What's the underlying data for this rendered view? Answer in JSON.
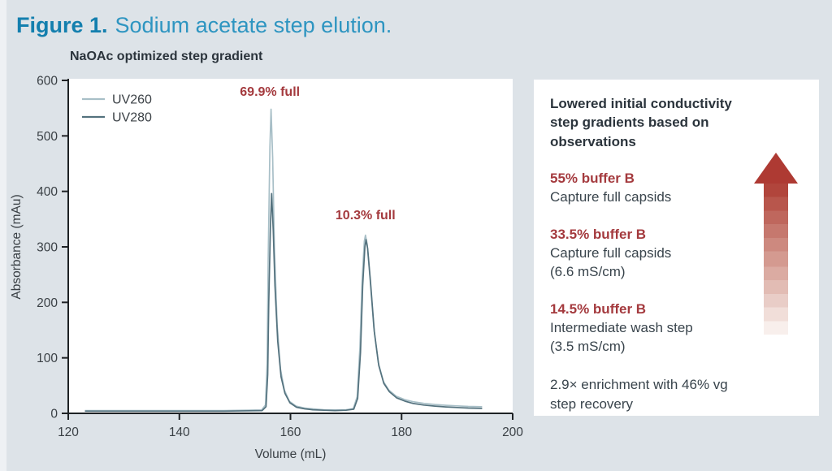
{
  "figure": {
    "label": "Figure 1.",
    "caption": "Sodium acetate step elution."
  },
  "colors": {
    "background": "#dde3e8",
    "figure_label_blue": "#137fae",
    "figure_caption_blue": "#2e95c1",
    "accent_red": "#a43a3e",
    "arrow_red": "#ae3a33",
    "axis_dark": "#1e2225",
    "text_dark": "#39444c",
    "uv260_line": "#a8bfc7",
    "uv280_line": "#54727e"
  },
  "chart_data": {
    "type": "line",
    "title": "NaOAc optimized step gradient",
    "xlabel": "Volume (mL)",
    "ylabel": "Absorbance (mAu)",
    "xlim": [
      120,
      200
    ],
    "ylim": [
      0,
      600
    ],
    "xticks": [
      120,
      140,
      160,
      180,
      200
    ],
    "yticks": [
      0,
      100,
      200,
      300,
      400,
      500,
      600
    ],
    "legend_position": "top-left",
    "grid": false,
    "annotations": [
      {
        "label": "69.9% full",
        "x": 156.3,
        "y": 572
      },
      {
        "label": "10.3% full",
        "x": 173.5,
        "y": 350
      }
    ],
    "series": [
      {
        "name": "UV260",
        "color": "#a8bfc7",
        "points": [
          [
            123,
            5
          ],
          [
            135,
            5
          ],
          [
            148,
            5
          ],
          [
            154.8,
            6
          ],
          [
            155.5,
            15
          ],
          [
            155.8,
            90
          ],
          [
            156.0,
            280
          ],
          [
            156.3,
            480
          ],
          [
            156.5,
            548
          ],
          [
            156.8,
            460
          ],
          [
            157.1,
            300
          ],
          [
            157.6,
            160
          ],
          [
            158.2,
            80
          ],
          [
            158.9,
            42
          ],
          [
            159.8,
            22
          ],
          [
            161,
            13
          ],
          [
            162.5,
            9.5
          ],
          [
            164,
            8
          ],
          [
            166,
            6.5
          ],
          [
            168,
            6
          ],
          [
            170,
            6.5
          ],
          [
            171.3,
            8.5
          ],
          [
            172.0,
            30
          ],
          [
            172.5,
            120
          ],
          [
            172.9,
            240
          ],
          [
            173.3,
            310
          ],
          [
            173.5,
            321
          ],
          [
            173.8,
            305
          ],
          [
            174.3,
            245
          ],
          [
            175,
            155
          ],
          [
            175.8,
            92
          ],
          [
            176.7,
            58
          ],
          [
            177.7,
            42
          ],
          [
            179,
            31
          ],
          [
            180.5,
            25
          ],
          [
            182,
            21
          ],
          [
            184,
            18
          ],
          [
            186,
            16
          ],
          [
            188,
            14.5
          ],
          [
            190,
            13.5
          ],
          [
            192,
            12.5
          ],
          [
            194.5,
            12
          ]
        ]
      },
      {
        "name": "UV280",
        "color": "#54727e",
        "points": [
          [
            123,
            4
          ],
          [
            135,
            4
          ],
          [
            148,
            4
          ],
          [
            154.9,
            5
          ],
          [
            155.6,
            12
          ],
          [
            155.9,
            70
          ],
          [
            156.1,
            200
          ],
          [
            156.4,
            340
          ],
          [
            156.6,
            396
          ],
          [
            156.9,
            330
          ],
          [
            157.2,
            230
          ],
          [
            157.7,
            130
          ],
          [
            158.3,
            66
          ],
          [
            159,
            36
          ],
          [
            159.9,
            19
          ],
          [
            161.1,
            11
          ],
          [
            162.6,
            8
          ],
          [
            164,
            6.5
          ],
          [
            166,
            5.5
          ],
          [
            168,
            5
          ],
          [
            170,
            5.5
          ],
          [
            171.4,
            7.5
          ],
          [
            172.1,
            27
          ],
          [
            172.6,
            110
          ],
          [
            173,
            230
          ],
          [
            173.4,
            300
          ],
          [
            173.6,
            313
          ],
          [
            173.9,
            297
          ],
          [
            174.4,
            237
          ],
          [
            175.1,
            147
          ],
          [
            175.9,
            86
          ],
          [
            176.8,
            54
          ],
          [
            177.8,
            39
          ],
          [
            179.1,
            28
          ],
          [
            180.6,
            22
          ],
          [
            182,
            18
          ],
          [
            184,
            15
          ],
          [
            186,
            13
          ],
          [
            188,
            11.5
          ],
          [
            190,
            10.5
          ],
          [
            192,
            9.5
          ],
          [
            194.5,
            9
          ]
        ]
      }
    ]
  },
  "panel": {
    "heading": [
      "Lowered initial conductivity",
      "step gradients based on observations"
    ],
    "steps": [
      {
        "label": "55% buffer B",
        "lines": [
          "Capture full capsids"
        ]
      },
      {
        "label": "33.5% buffer B",
        "lines": [
          "Capture full capsids",
          "(6.6 mS/cm)"
        ]
      },
      {
        "label": "14.5% buffer B",
        "lines": [
          "Intermediate wash step",
          "(3.5 mS/cm)"
        ]
      }
    ],
    "summary": [
      "2.9× enrichment with 46% vg",
      "step recovery"
    ]
  }
}
